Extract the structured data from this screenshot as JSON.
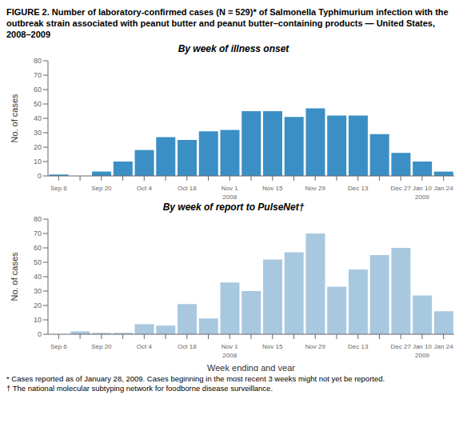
{
  "title": "FIGURE 2. Number of laboratory-confirmed cases  (N = 529)* of Salmonella Typhimurium infection with the outbreak strain associated with peanut butter and peanut butter–containing products — United States, 2008–2009",
  "annotations": [
    "* Cases reported as of January 28, 2009. Cases beginning in the most recent 3 weeks might not yet be reported.",
    "† The national molecular subtyping network for foodborne disease surveillance."
  ],
  "chart_data": [
    {
      "type": "bar",
      "title": "By week of illness onset",
      "ylabel": "No. of cases",
      "categories": [
        "Sep 6",
        null,
        "Sep 20",
        null,
        "Oct 4",
        null,
        "Oct 18",
        null,
        "Nov 1",
        null,
        "Nov 15",
        null,
        "Nov 29",
        null,
        "Dec 13",
        null,
        "Dec 27",
        "Jan 10",
        "Jan 24"
      ],
      "values": [
        1,
        0,
        3,
        10,
        18,
        27,
        25,
        31,
        32,
        45,
        45,
        41,
        47,
        42,
        42,
        29,
        16,
        10,
        3
      ],
      "color": "#3B8FC4",
      "ylim": [
        0,
        80
      ],
      "yticks": [
        0,
        10,
        20,
        30,
        40,
        50,
        60,
        70,
        80
      ],
      "grid": false,
      "annotations": [
        {
          "text": "2008",
          "x": "Nov 1"
        },
        {
          "text": "2009",
          "x": "Jan 10"
        }
      ]
    },
    {
      "type": "bar",
      "title": "By week of report to PulseNet†",
      "xlabel": "Week ending and year",
      "ylabel": "No. of cases",
      "categories": [
        "Sep 6",
        null,
        "Sep 20",
        null,
        "Oct 4",
        null,
        "Oct 18",
        null,
        "Nov 1",
        null,
        "Nov 15",
        null,
        "Nov 29",
        null,
        "Dec 13",
        null,
        "Dec 27",
        "Jan 10",
        "Jan 24"
      ],
      "values": [
        0,
        2,
        1,
        1,
        7,
        6,
        21,
        11,
        36,
        30,
        52,
        57,
        70,
        33,
        45,
        55,
        60,
        27,
        16
      ],
      "color": "#A8C8E0",
      "ylim": [
        0,
        80
      ],
      "yticks": [
        0,
        10,
        20,
        30,
        40,
        50,
        60,
        70,
        80
      ],
      "grid": false,
      "annotations": [
        {
          "text": "2008",
          "x": "Nov 1"
        },
        {
          "text": "2009",
          "x": "Jan 10"
        }
      ]
    }
  ]
}
